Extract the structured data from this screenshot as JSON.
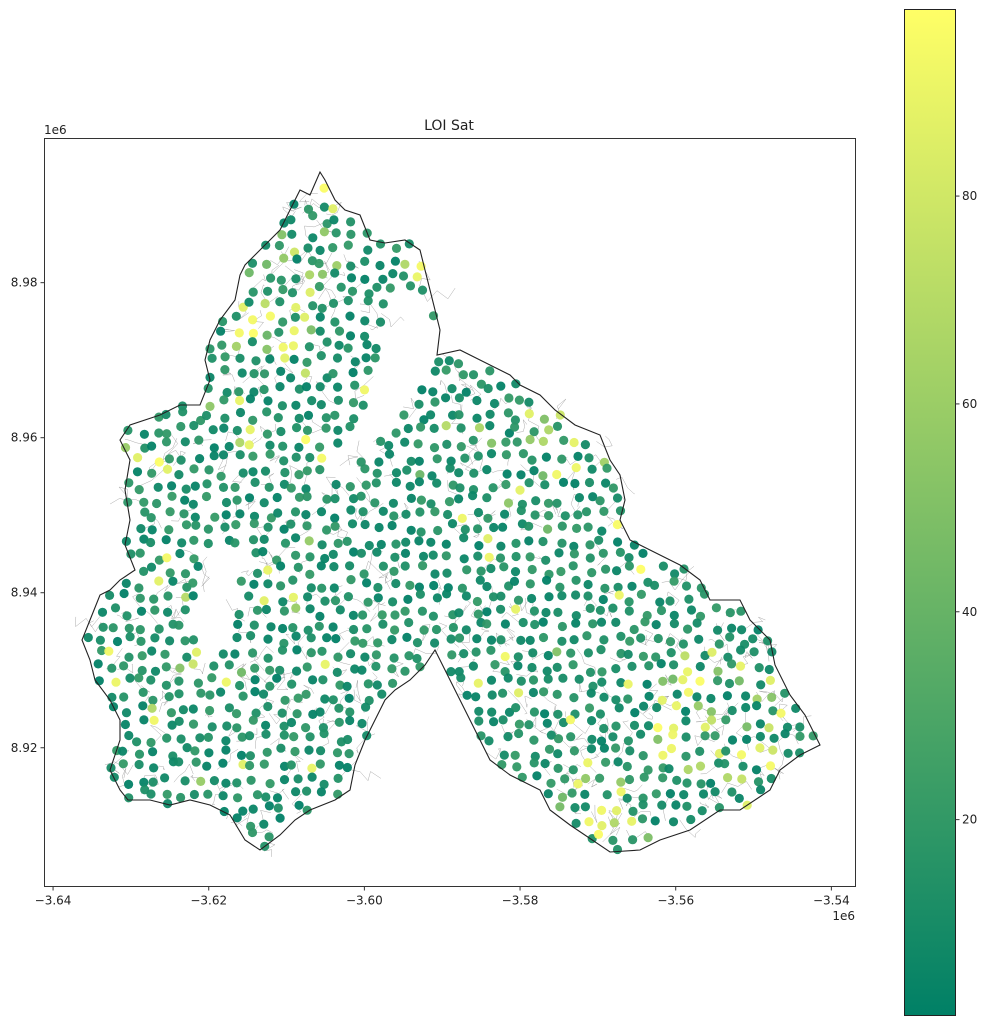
{
  "chart_data": {
    "type": "scatter",
    "title": "LOI Sat",
    "x_offset_label": "1e6",
    "y_offset_label": "1e6",
    "xlim": [
      -3.6411,
      -3.5369
    ],
    "ylim": [
      8.9021,
      8.9986
    ],
    "x_ticks": [
      {
        "value": -3.64,
        "label": "−3.64"
      },
      {
        "value": -3.62,
        "label": "−3.62"
      },
      {
        "value": -3.6,
        "label": "−3.60"
      },
      {
        "value": -3.58,
        "label": "−3.58"
      },
      {
        "value": -3.56,
        "label": "−3.56"
      },
      {
        "value": -3.54,
        "label": "−3.54"
      }
    ],
    "y_ticks": [
      {
        "value": 8.92,
        "label": "8.92"
      },
      {
        "value": 8.94,
        "label": "8.94"
      },
      {
        "value": 8.96,
        "label": "8.96"
      },
      {
        "value": 8.98,
        "label": "8.98"
      }
    ],
    "colorbar": {
      "colormap": "summer",
      "range": [
        1.2,
        98
      ],
      "ticks": [
        {
          "value": 20,
          "label": "20"
        },
        {
          "value": 40,
          "label": "40"
        },
        {
          "value": 60,
          "label": "60"
        },
        {
          "value": 80,
          "label": "80"
        }
      ],
      "color_low": "#008066",
      "color_high": "#ffff66"
    },
    "boundary_color": "#222222",
    "network_color": "#888888",
    "grid": false
  }
}
